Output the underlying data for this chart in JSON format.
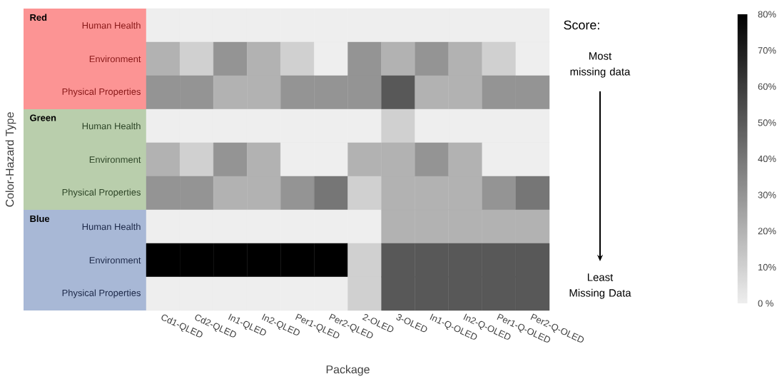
{
  "chart_data": {
    "type": "heatmap",
    "xlabel": "Package",
    "ylabel": "Color-Hazard Type",
    "categories": [
      "Cd1-QLED",
      "Cd2-QLED",
      "In1-QLED",
      "In2-QLED",
      "Per1-QLED",
      "Per2-QLED",
      "2-OLED",
      "3-OLED",
      "In1-Q-OLED",
      "In2-Q-OLED",
      "Per1-Q-OLED",
      "Per2-Q-OLED"
    ],
    "y_categories": [
      "Human Health",
      "Environment",
      "Physical Properties",
      "Human Health",
      "Environment",
      "Physical Properties",
      "Human Health",
      "Environment",
      "Physical Properties"
    ],
    "cells": [
      [
        0,
        0,
        0,
        0,
        0,
        0,
        0,
        0,
        0,
        0,
        0,
        0
      ],
      [
        20,
        10,
        30,
        20,
        10,
        0,
        30,
        20,
        30,
        20,
        10,
        0
      ],
      [
        30,
        30,
        20,
        20,
        30,
        30,
        30,
        50,
        20,
        20,
        30,
        30
      ],
      [
        0,
        0,
        0,
        0,
        0,
        0,
        0,
        10,
        0,
        0,
        0,
        0
      ],
      [
        20,
        10,
        30,
        20,
        0,
        0,
        20,
        20,
        30,
        20,
        0,
        0
      ],
      [
        30,
        30,
        20,
        20,
        30,
        40,
        10,
        20,
        20,
        20,
        30,
        40
      ],
      [
        0,
        0,
        0,
        0,
        0,
        0,
        0,
        20,
        20,
        20,
        20,
        20
      ],
      [
        80,
        80,
        80,
        80,
        80,
        80,
        10,
        50,
        50,
        50,
        50,
        50
      ],
      [
        0,
        0,
        0,
        0,
        0,
        0,
        10,
        50,
        50,
        50,
        50,
        50
      ]
    ],
    "clim": [
      0,
      80
    ],
    "cticks": [
      {
        "value": 0,
        "label": "0 %"
      },
      {
        "value": 10,
        "label": "10%"
      },
      {
        "value": 20,
        "label": "20%"
      },
      {
        "value": 30,
        "label": "30%"
      },
      {
        "value": 40,
        "label": "40%"
      },
      {
        "value": 50,
        "label": "50%"
      },
      {
        "value": 60,
        "label": "60%"
      },
      {
        "value": 70,
        "label": "70%"
      },
      {
        "value": 80,
        "label": "80%"
      }
    ],
    "annotations": [
      "Red",
      "Green",
      "Blue",
      "Score:",
      "Most missing data",
      "Least Missing Data"
    ]
  }
}
